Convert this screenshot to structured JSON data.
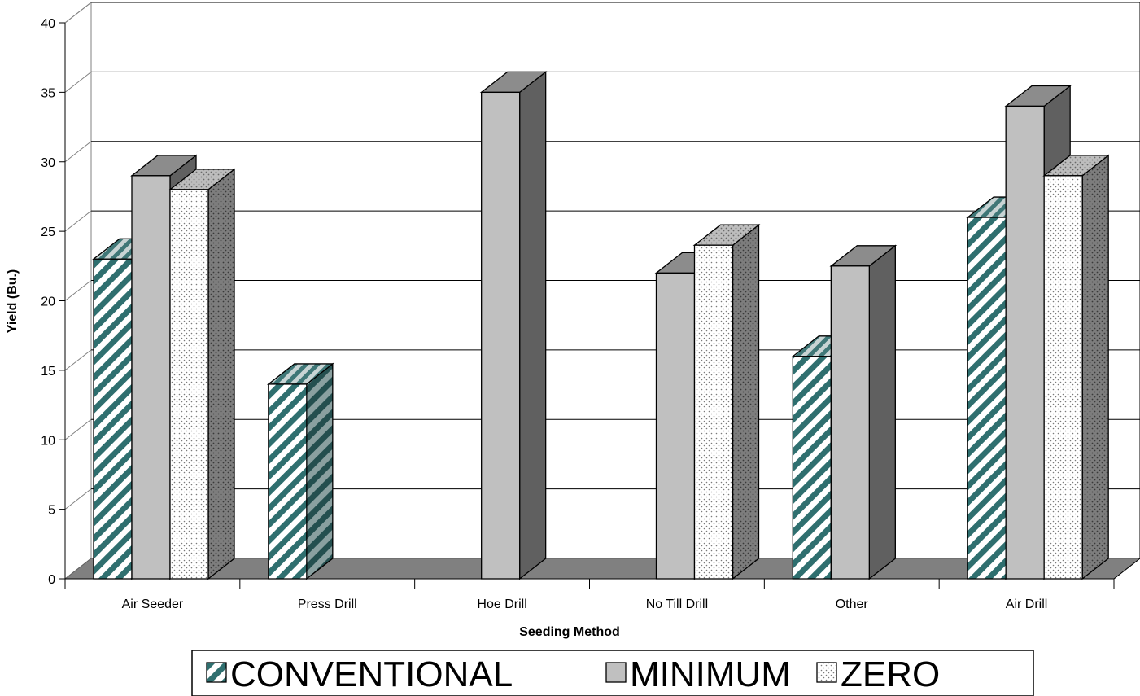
{
  "chart_data": {
    "type": "bar",
    "style": "3d-clustered-column",
    "title": "",
    "xlabel": "Seeding Method",
    "ylabel": "Yield (Bu.)",
    "ylim": [
      0,
      40
    ],
    "ytick_step": 5,
    "yticks": [
      "0",
      "5",
      "10",
      "15",
      "20",
      "25",
      "30",
      "35",
      "40"
    ],
    "grid": true,
    "legend_position": "bottom",
    "categories": [
      "Air Seeder",
      "Press Drill",
      "Hoe Drill",
      "No Till Drill",
      "Other",
      "Air Drill"
    ],
    "series": [
      {
        "name": "CONVENTIONAL",
        "pattern": "diagonal-hatch",
        "color": "#2f6f6f",
        "values": [
          23,
          14,
          null,
          null,
          16,
          26
        ]
      },
      {
        "name": "MINIMUM",
        "pattern": "solid",
        "color": "#c0c0c0",
        "values": [
          29,
          null,
          35,
          22,
          22.5,
          34
        ]
      },
      {
        "name": "ZERO",
        "pattern": "dots",
        "color": "#ffffff",
        "values": [
          28,
          null,
          null,
          24,
          null,
          29
        ]
      }
    ]
  }
}
